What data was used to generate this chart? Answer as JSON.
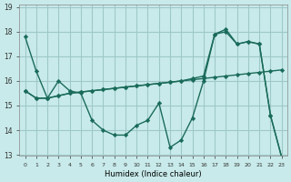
{
  "xlabel": "Humidex (Indice chaleur)",
  "background_color": "#c8eaea",
  "grid_color": "#a0c8c8",
  "line_color": "#1a6b5a",
  "xlim": [
    -0.5,
    23.5
  ],
  "ylim": [
    13,
    19
  ],
  "yticks": [
    13,
    14,
    15,
    16,
    17,
    18,
    19
  ],
  "xticks": [
    0,
    1,
    2,
    3,
    4,
    5,
    6,
    7,
    8,
    9,
    10,
    11,
    12,
    13,
    14,
    15,
    16,
    17,
    18,
    19,
    20,
    21,
    22,
    23
  ],
  "series1": [
    17.8,
    16.4,
    15.3,
    16.0,
    15.6,
    15.5,
    14.4,
    14.0,
    13.8,
    13.8,
    14.2,
    14.4,
    15.1,
    13.3,
    13.6,
    14.5,
    16.0,
    17.9,
    18.1,
    17.5,
    17.6,
    17.5,
    14.6,
    12.9
  ],
  "series2": [
    15.6,
    15.3,
    15.3,
    15.4,
    15.5,
    15.55,
    15.6,
    15.65,
    15.7,
    15.75,
    15.8,
    15.85,
    15.9,
    15.95,
    16.0,
    16.05,
    16.1,
    16.15,
    16.2,
    16.25,
    16.3,
    16.35,
    16.4,
    16.45
  ],
  "series3": [
    15.6,
    15.3,
    15.3,
    15.4,
    15.5,
    15.55,
    15.6,
    15.65,
    15.7,
    15.75,
    15.8,
    15.85,
    15.9,
    15.95,
    16.0,
    16.1,
    16.2,
    17.9,
    18.0,
    17.5,
    17.6,
    17.5,
    14.6,
    12.9
  ]
}
